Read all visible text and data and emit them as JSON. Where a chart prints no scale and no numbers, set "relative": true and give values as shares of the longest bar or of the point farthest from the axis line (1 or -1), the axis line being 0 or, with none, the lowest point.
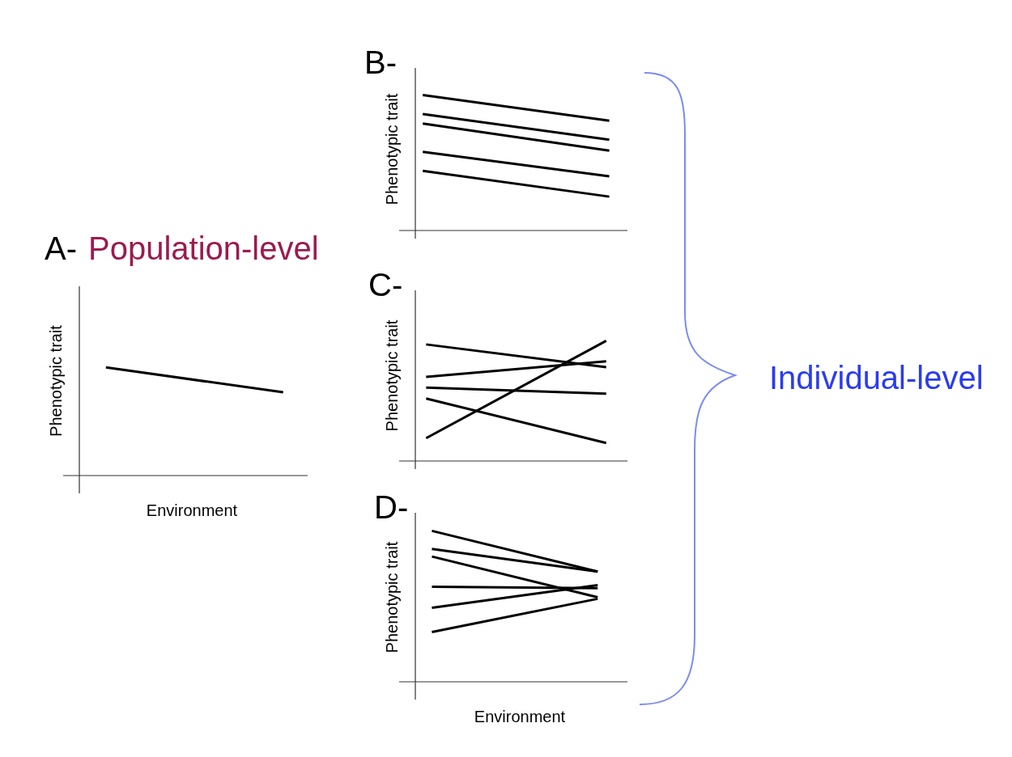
{
  "chart_data": [
    {
      "type": "line",
      "title": "A-",
      "subtitle": "Population-level",
      "xlabel": "Environment",
      "ylabel": "Phenotypic trait",
      "relative": true,
      "categories": [
        null,
        null
      ],
      "series": [
        {
          "color": "#000000",
          "values": [
            1,
            0.77
          ]
        }
      ]
    },
    {
      "type": "line",
      "title": "B-",
      "ylabel": "Phenotypic trait",
      "relative": true,
      "categories": [
        null,
        null
      ],
      "series": [
        {
          "color": "#000000",
          "values": [
            1,
            0.81
          ]
        },
        {
          "color": "#000000",
          "values": [
            0.86,
            0.67
          ]
        },
        {
          "color": "#000000",
          "values": [
            0.79,
            0.59
          ]
        },
        {
          "color": "#000000",
          "values": [
            0.58,
            0.4
          ]
        },
        {
          "color": "#000000",
          "values": [
            0.44,
            0.25
          ]
        }
      ]
    },
    {
      "type": "line",
      "title": "C-",
      "ylabel": "Phenotypic trait",
      "relative": true,
      "categories": [
        null,
        null
      ],
      "annotations": [
        "Individual-level"
      ],
      "series": [
        {
          "color": "#000000",
          "values": [
            0.97,
            0.78
          ]
        },
        {
          "color": "#000000",
          "values": [
            0.7,
            0.83
          ]
        },
        {
          "color": "#000000",
          "values": [
            0.61,
            0.56
          ]
        },
        {
          "color": "#000000",
          "values": [
            0.52,
            0.15
          ]
        },
        {
          "color": "#000000",
          "values": [
            0.19,
            1
          ]
        }
      ]
    },
    {
      "type": "line",
      "title": "D-",
      "xlabel": "Environment",
      "ylabel": "Phenotypic trait",
      "relative": true,
      "categories": [
        null,
        null
      ],
      "series": [
        {
          "color": "#000000",
          "values": [
            1,
            0.73
          ]
        },
        {
          "color": "#000000",
          "values": [
            0.88,
            0.73
          ]
        },
        {
          "color": "#000000",
          "values": [
            0.83,
            0.56
          ]
        },
        {
          "color": "#000000",
          "values": [
            0.63,
            0.62
          ]
        },
        {
          "color": "#000000",
          "values": [
            0.49,
            0.64
          ]
        },
        {
          "color": "#000000",
          "values": [
            0.33,
            0.55
          ]
        }
      ]
    }
  ]
}
